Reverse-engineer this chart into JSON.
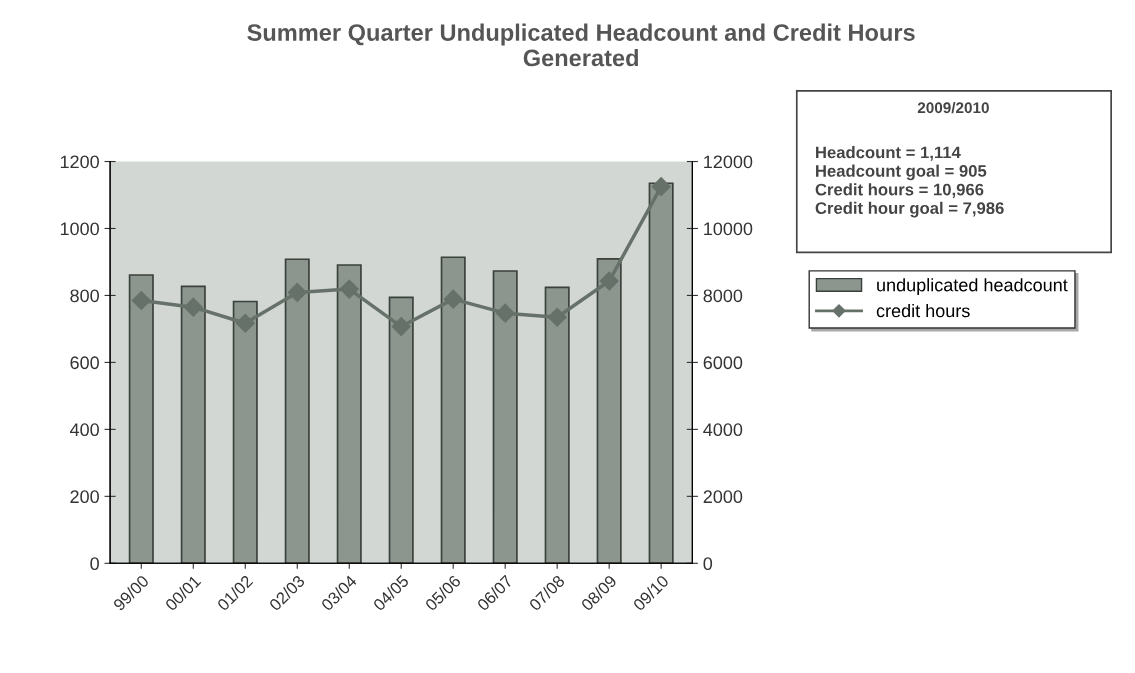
{
  "chart_data": {
    "type": "bar",
    "title": "Summer Quarter Unduplicated Headcount and Credit Hours\nGenerated",
    "categories": [
      "99/00",
      "00/01",
      "01/02",
      "02/03",
      "03/04",
      "04/05",
      "05/06",
      "06/07",
      "07/08",
      "08/09",
      "09/10"
    ],
    "series": [
      {
        "name": "unduplicated headcount",
        "color": "#8c968f",
        "values": [
          861,
          827,
          782,
          908,
          891,
          794,
          914,
          873,
          824,
          909,
          1135
        ]
      },
      {
        "name": "credit hours",
        "type": "line",
        "axis": "y2",
        "color": "#66716a",
        "marker": "diamond",
        "values": [
          7850,
          7650,
          7170,
          8090,
          8190,
          7070,
          7890,
          7470,
          7350,
          8430,
          11250
        ]
      }
    ],
    "ylim": [
      0,
      1200
    ],
    "yticks": [
      0,
      200,
      400,
      600,
      800,
      1000,
      1200
    ],
    "y2lim": [
      0,
      12000
    ],
    "y2ticks": [
      0,
      2000,
      4000,
      6000,
      8000,
      10000,
      12000
    ],
    "grid": false,
    "legend": "right",
    "annotations": [
      "2009/2010",
      "Headcount = 1,114\nHeadcount goal = 905\nCredit hours = 10,966\nCredit hour goal = 7,986"
    ]
  }
}
